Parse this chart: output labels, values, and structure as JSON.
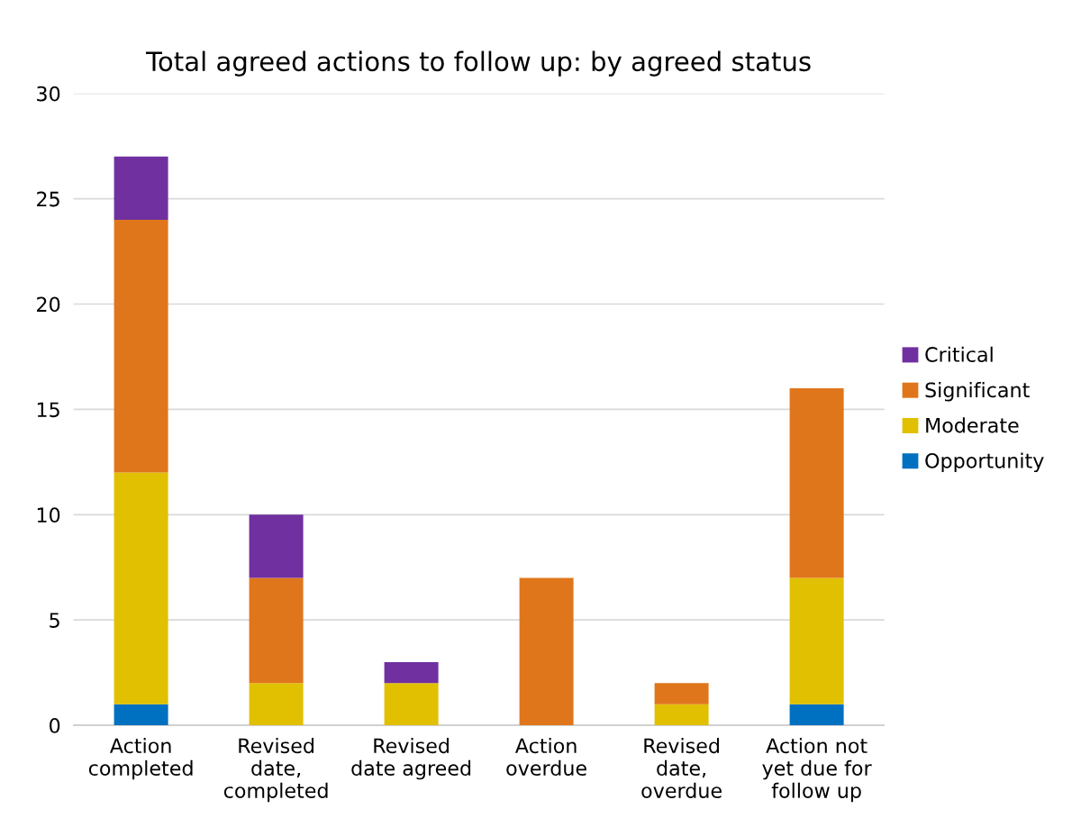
{
  "chart_data": {
    "type": "bar",
    "stacked": true,
    "title": "Total agreed actions to follow up: by agreed status",
    "categories": [
      "Action\ncompleted",
      "Revised\ndate,\ncompleted",
      "Revised\ndate agreed",
      "Action\noverdue",
      "Revised\ndate,\noverdue",
      "Action not\nyet due for\nfollow up"
    ],
    "series": [
      {
        "name": "Opportunity",
        "color": "#0070c0",
        "values": [
          1,
          0,
          0,
          0,
          0,
          1
        ]
      },
      {
        "name": "Moderate",
        "color": "#e0c000",
        "values": [
          11,
          2,
          2,
          0,
          1,
          6
        ]
      },
      {
        "name": "Significant",
        "color": "#e0761b",
        "values": [
          12,
          5,
          0,
          7,
          1,
          9
        ]
      },
      {
        "name": "Critical",
        "color": "#7030a0",
        "values": [
          3,
          3,
          1,
          0,
          0,
          0
        ]
      }
    ],
    "ylim": [
      0,
      30
    ],
    "yticks": [
      0,
      5,
      10,
      15,
      20,
      25,
      30
    ],
    "grid": "y",
    "legend": "right"
  }
}
